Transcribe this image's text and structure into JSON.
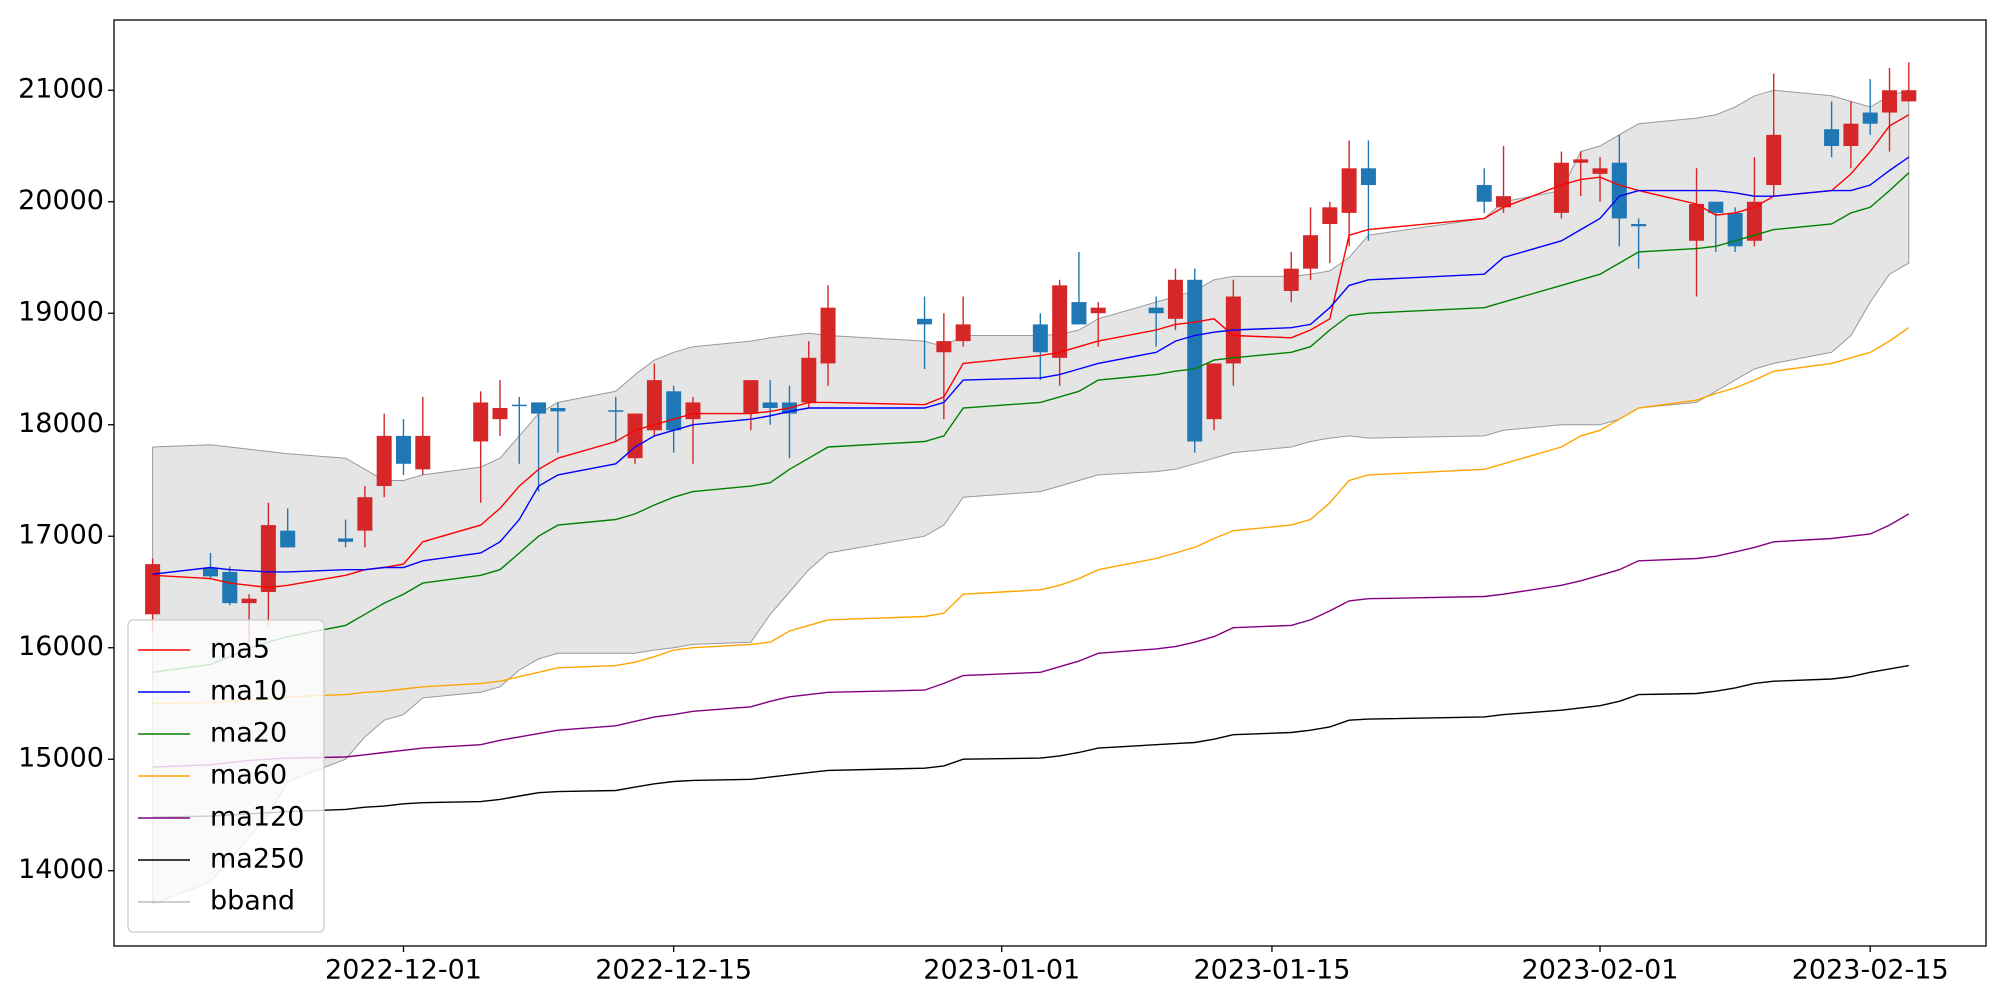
{
  "chart_data": {
    "type": "candlestick",
    "dates": [
      "2022-11-18",
      "2022-11-21",
      "2022-11-22",
      "2022-11-23",
      "2022-11-24",
      "2022-11-25",
      "2022-11-28",
      "2022-11-29",
      "2022-11-30",
      "2022-12-01",
      "2022-12-02",
      "2022-12-05",
      "2022-12-06",
      "2022-12-07",
      "2022-12-08",
      "2022-12-09",
      "2022-12-12",
      "2022-12-13",
      "2022-12-14",
      "2022-12-15",
      "2022-12-16",
      "2022-12-19",
      "2022-12-20",
      "2022-12-21",
      "2022-12-22",
      "2022-12-23",
      "2022-12-28",
      "2022-12-29",
      "2022-12-30",
      "2023-01-03",
      "2023-01-04",
      "2023-01-05",
      "2023-01-06",
      "2023-01-09",
      "2023-01-10",
      "2023-01-11",
      "2023-01-12",
      "2023-01-13",
      "2023-01-16",
      "2023-01-17",
      "2023-01-18",
      "2023-01-19",
      "2023-01-20",
      "2023-01-26",
      "2023-01-27",
      "2023-01-30",
      "2023-01-31",
      "2023-02-01",
      "2023-02-02",
      "2023-02-03",
      "2023-02-06",
      "2023-02-07",
      "2023-02-08",
      "2023-02-09",
      "2023-02-10",
      "2023-02-13",
      "2023-02-14",
      "2023-02-15",
      "2023-02-16",
      "2023-02-17"
    ],
    "open": [
      16300,
      16720,
      16680,
      16400,
      16500,
      17050,
      16980,
      17050,
      17450,
      17900,
      17600,
      17850,
      18050,
      18180,
      18200,
      18150,
      18130,
      17700,
      17950,
      18300,
      18050,
      18100,
      18200,
      18200,
      18200,
      18550,
      18950,
      18650,
      18750,
      18900,
      18600,
      19100,
      19000,
      19050,
      18950,
      19300,
      18050,
      18550,
      19200,
      19400,
      19800,
      19900,
      20300,
      20150,
      19950,
      19900,
      20350,
      20250,
      20350,
      19800,
      19650,
      20000,
      19900,
      19650,
      20150,
      20650,
      20500,
      20800,
      20800,
      20900
    ],
    "high": [
      16800,
      16850,
      16730,
      16480,
      17300,
      17250,
      17150,
      17450,
      18100,
      18050,
      18250,
      18300,
      18400,
      18250,
      18200,
      18200,
      18250,
      18100,
      18550,
      18350,
      18250,
      18400,
      18400,
      18350,
      18750,
      19250,
      19150,
      19000,
      19150,
      19000,
      19300,
      19550,
      19100,
      19150,
      19400,
      19400,
      18550,
      19300,
      19550,
      19950,
      20000,
      20550,
      20550,
      20300,
      20500,
      20450,
      20450,
      20400,
      20600,
      19850,
      20300,
      20000,
      19950,
      20400,
      21150,
      20900,
      20900,
      21100,
      21200,
      21250
    ],
    "low": [
      16150,
      16620,
      16380,
      16050,
      16200,
      16900,
      16900,
      16900,
      17350,
      17550,
      17550,
      17300,
      17900,
      17650,
      17400,
      17750,
      17850,
      17650,
      17900,
      17750,
      17650,
      17950,
      18000,
      17700,
      18150,
      18350,
      18500,
      18050,
      18700,
      18400,
      18350,
      18900,
      18700,
      18700,
      18850,
      17750,
      17950,
      18350,
      19100,
      19300,
      19450,
      19600,
      19650,
      19900,
      19900,
      19850,
      20050,
      20000,
      19600,
      19400,
      19150,
      19550,
      19550,
      19600,
      20050,
      20400,
      20300,
      20600,
      20450,
      20900
    ],
    "close": [
      16750,
      16640,
      16400,
      16440,
      17100,
      16900,
      16950,
      17350,
      17900,
      17650,
      17900,
      18200,
      18150,
      18170,
      18100,
      18120,
      18120,
      18100,
      18400,
      17950,
      18200,
      18400,
      18150,
      18100,
      18600,
      19050,
      18900,
      18750,
      18900,
      18650,
      19250,
      18900,
      19050,
      19000,
      19300,
      17850,
      18550,
      19150,
      19400,
      19700,
      19950,
      20300,
      20150,
      20000,
      20050,
      20350,
      20380,
      20300,
      19850,
      19780,
      19980,
      19900,
      19600,
      20000,
      20600,
      20500,
      20700,
      20700,
      21000,
      21000
    ],
    "up_color": "#d62728",
    "down_color": "#1f77b4",
    "lines": [
      {
        "name": "ma5",
        "color": "#ff0000",
        "values": [
          16650,
          16620,
          16580,
          16560,
          16540,
          16560,
          16650,
          16700,
          16720,
          16750,
          16950,
          17100,
          17250,
          17450,
          17600,
          17700,
          17850,
          17950,
          18000,
          18050,
          18100,
          18100,
          18120,
          18150,
          18200,
          18200,
          18180,
          18250,
          18550,
          18620,
          18650,
          18700,
          18750,
          18850,
          18900,
          18920,
          18950,
          18800,
          18780,
          18850,
          18950,
          19700,
          19750,
          19850,
          19950,
          20150,
          20200,
          20220,
          20150,
          20100,
          19980,
          19880,
          19900,
          19950,
          20050,
          20100,
          20250,
          20450,
          20680,
          20780
        ]
      },
      {
        "name": "ma10",
        "color": "#0000ff",
        "values": [
          16660,
          16720,
          16700,
          16690,
          16680,
          16680,
          16700,
          16700,
          16720,
          16720,
          16780,
          16850,
          16950,
          17150,
          17450,
          17550,
          17650,
          17800,
          17900,
          17950,
          18000,
          18050,
          18080,
          18120,
          18150,
          18150,
          18150,
          18200,
          18400,
          18420,
          18450,
          18500,
          18550,
          18650,
          18750,
          18800,
          18830,
          18850,
          18870,
          18900,
          19050,
          19250,
          19300,
          19350,
          19500,
          19650,
          19750,
          19850,
          20050,
          20100,
          20100,
          20100,
          20080,
          20050,
          20050,
          20100,
          20100,
          20150,
          20280,
          20400
        ]
      },
      {
        "name": "ma20",
        "color": "#008000",
        "values": [
          15780,
          15850,
          15920,
          16000,
          16050,
          16100,
          16200,
          16300,
          16400,
          16480,
          16580,
          16650,
          16700,
          16850,
          17000,
          17100,
          17150,
          17200,
          17280,
          17350,
          17400,
          17450,
          17480,
          17600,
          17700,
          17800,
          17850,
          17900,
          18150,
          18200,
          18250,
          18300,
          18400,
          18450,
          18480,
          18500,
          18580,
          18600,
          18650,
          18700,
          18850,
          18980,
          19000,
          19050,
          19100,
          19250,
          19300,
          19350,
          19450,
          19550,
          19580,
          19600,
          19650,
          19700,
          19750,
          19800,
          19900,
          19950,
          20100,
          20260
        ]
      },
      {
        "name": "ma60",
        "color": "#ffa500",
        "values": [
          15500,
          15510,
          15520,
          15530,
          15540,
          15560,
          15580,
          15600,
          15610,
          15630,
          15650,
          15680,
          15700,
          15740,
          15780,
          15820,
          15840,
          15870,
          15920,
          15980,
          16000,
          16030,
          16050,
          16150,
          16200,
          16250,
          16280,
          16310,
          16480,
          16520,
          16560,
          16620,
          16700,
          16800,
          16850,
          16900,
          16980,
          17050,
          17100,
          17150,
          17300,
          17500,
          17550,
          17600,
          17650,
          17800,
          17900,
          17950,
          18050,
          18150,
          18220,
          18280,
          18330,
          18400,
          18480,
          18550,
          18600,
          18650,
          18750,
          18870
        ]
      },
      {
        "name": "ma120",
        "color": "#800080",
        "values": [
          14930,
          14950,
          14970,
          14990,
          15000,
          15010,
          15020,
          15040,
          15060,
          15080,
          15100,
          15130,
          15170,
          15200,
          15230,
          15260,
          15300,
          15340,
          15380,
          15400,
          15430,
          15470,
          15520,
          15560,
          15580,
          15600,
          15620,
          15680,
          15750,
          15780,
          15830,
          15880,
          15950,
          15990,
          16010,
          16050,
          16100,
          16180,
          16200,
          16250,
          16330,
          16420,
          16440,
          16460,
          16480,
          16560,
          16600,
          16650,
          16700,
          16780,
          16800,
          16820,
          16860,
          16900,
          16950,
          16980,
          17000,
          17020,
          17100,
          17200
        ]
      },
      {
        "name": "ma250",
        "color": "#000000",
        "values": [
          14480,
          14490,
          14500,
          14510,
          14520,
          14530,
          14550,
          14570,
          14580,
          14600,
          14610,
          14620,
          14640,
          14670,
          14700,
          14710,
          14720,
          14750,
          14780,
          14800,
          14810,
          14820,
          14840,
          14860,
          14880,
          14900,
          14920,
          14940,
          15000,
          15010,
          15030,
          15060,
          15100,
          15130,
          15140,
          15150,
          15180,
          15220,
          15240,
          15260,
          15290,
          15350,
          15360,
          15380,
          15400,
          15440,
          15460,
          15480,
          15520,
          15580,
          15590,
          15610,
          15640,
          15680,
          15700,
          15720,
          15740,
          15780,
          15810,
          15840
        ]
      }
    ],
    "band": {
      "name": "bband",
      "color": "#e5e5e5",
      "edge_color": "#999999",
      "upper": [
        17800,
        17820,
        17800,
        17780,
        17760,
        17740,
        17700,
        17600,
        17500,
        17500,
        17550,
        17620,
        17700,
        17900,
        18100,
        18200,
        18300,
        18450,
        18580,
        18650,
        18700,
        18750,
        18780,
        18800,
        18820,
        18800,
        18750,
        18700,
        18800,
        18800,
        18810,
        18850,
        18950,
        19100,
        19150,
        19200,
        19300,
        19330,
        19330,
        19350,
        19380,
        19500,
        19700,
        19850,
        20000,
        20100,
        20450,
        20500,
        20600,
        20700,
        20750,
        20780,
        20850,
        20950,
        21000,
        20950,
        20900,
        20850,
        20950,
        21000
      ],
      "lower": [
        13700,
        13900,
        14100,
        14300,
        14500,
        14800,
        15000,
        15200,
        15350,
        15400,
        15550,
        15600,
        15650,
        15800,
        15900,
        15950,
        15950,
        15950,
        15980,
        16000,
        16030,
        16050,
        16300,
        16500,
        16700,
        16850,
        17000,
        17100,
        17350,
        17400,
        17450,
        17500,
        17550,
        17580,
        17600,
        17650,
        17700,
        17750,
        17800,
        17850,
        17880,
        17900,
        17880,
        17900,
        17950,
        18000,
        18000,
        18000,
        18050,
        18150,
        18200,
        18300,
        18400,
        18500,
        18550,
        18650,
        18800,
        19100,
        19350,
        19450
      ]
    },
    "xlim": [
      "2022-11-16",
      "2023-02-21"
    ],
    "xticks": [
      "2022-12-01",
      "2022-12-15",
      "2023-01-01",
      "2023-01-15",
      "2023-02-01",
      "2023-02-15"
    ],
    "ylim": [
      13325,
      21630
    ],
    "yticks": [
      14000,
      15000,
      16000,
      17000,
      18000,
      19000,
      20000,
      21000
    ],
    "legend": "lower left"
  }
}
